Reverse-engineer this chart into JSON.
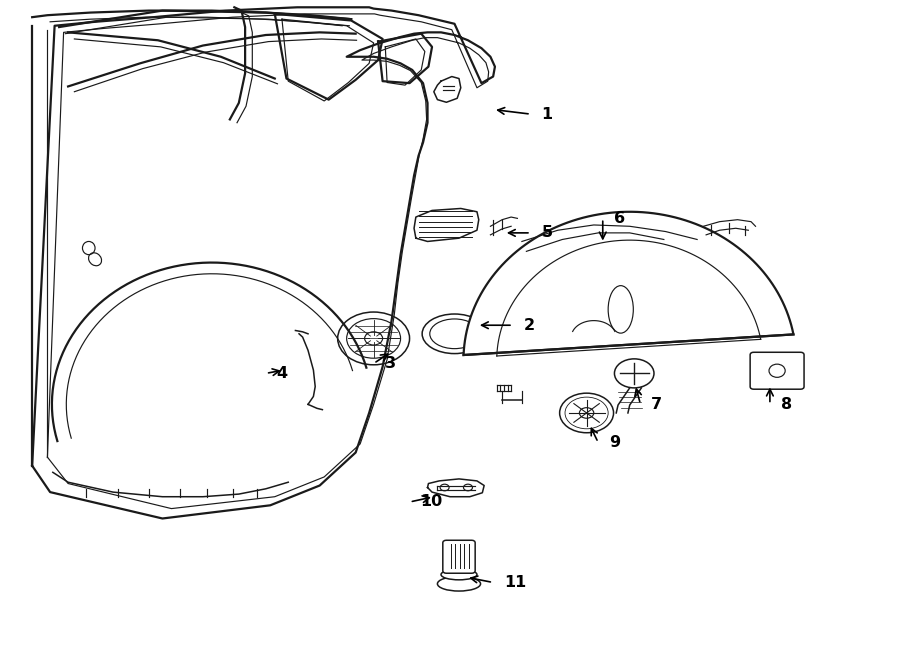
{
  "bg_color": "#ffffff",
  "line_color": "#1a1a1a",
  "lw_main": 1.6,
  "lw_thin": 0.85,
  "lw_med": 1.1,
  "label_positions": {
    "1": [
      0.59,
      0.828,
      0.548,
      0.835
    ],
    "2": [
      0.57,
      0.508,
      0.53,
      0.508
    ],
    "3": [
      0.415,
      0.45,
      0.435,
      0.468
    ],
    "4": [
      0.295,
      0.435,
      0.315,
      0.44
    ],
    "5": [
      0.59,
      0.648,
      0.56,
      0.648
    ],
    "6": [
      0.67,
      0.67,
      0.67,
      0.632
    ],
    "7": [
      0.712,
      0.388,
      0.706,
      0.418
    ],
    "8": [
      0.856,
      0.388,
      0.856,
      0.418
    ],
    "9": [
      0.665,
      0.33,
      0.655,
      0.358
    ],
    "10": [
      0.455,
      0.24,
      0.482,
      0.248
    ],
    "11": [
      0.548,
      0.118,
      0.518,
      0.126
    ]
  }
}
